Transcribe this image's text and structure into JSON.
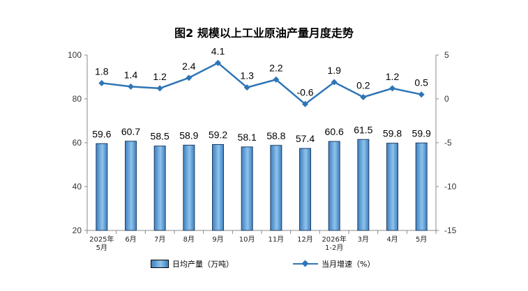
{
  "chart_data": {
    "type": "bar+line",
    "title": "图2  规模以上工业原油产量月度走势",
    "categories": [
      "2025年\n5月",
      "6月",
      "7月",
      "8月",
      "9月",
      "10月",
      "11月",
      "12月",
      "2026年\n1-2月",
      "3月",
      "4月",
      "5月"
    ],
    "series": [
      {
        "name": "日均产量（万吨）",
        "type": "bar",
        "axis": "left",
        "values": [
          59.6,
          60.7,
          58.5,
          58.9,
          59.2,
          58.1,
          58.8,
          57.4,
          60.6,
          61.5,
          59.8,
          59.9
        ],
        "labels": [
          "59.6",
          "60.7",
          "58.5",
          "58.9",
          "59.2",
          "58.1",
          "58.8",
          "57.4",
          "60.6",
          "61.5",
          "59.8",
          "59.9"
        ]
      },
      {
        "name": "当月增速（%）",
        "type": "line",
        "axis": "right",
        "values": [
          1.8,
          1.4,
          1.2,
          2.4,
          4.1,
          1.3,
          2.2,
          -0.6,
          1.9,
          0.2,
          1.2,
          0.5
        ],
        "labels": [
          "1.8",
          "1.4",
          "1.2",
          "2.4",
          "4.1",
          "1.3",
          "2.2",
          "-0.6",
          "1.9",
          "0.2",
          "1.2",
          "0.5"
        ]
      }
    ],
    "left_axis": {
      "ylim": [
        20,
        100
      ],
      "ticks": [
        "20",
        "40",
        "60",
        "80",
        "100"
      ]
    },
    "right_axis": {
      "ylim": [
        -15,
        5
      ],
      "ticks": [
        "-15",
        "-10",
        "-5",
        "0",
        "5"
      ]
    },
    "grid": false,
    "legend_position": "bottom",
    "colors": {
      "bar_edge": "#1f3f66",
      "bar_light": "#8ec3ec",
      "bar_dark": "#3f7fbf",
      "line": "#2e75b6"
    }
  }
}
